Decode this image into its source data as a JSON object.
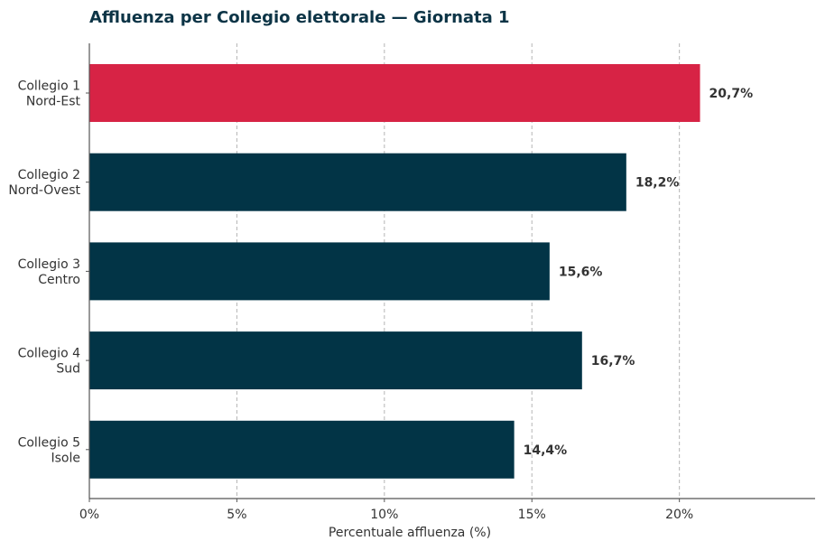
{
  "chart_data": {
    "type": "bar",
    "orientation": "horizontal",
    "title": "Affluenza per Collegio elettorale — Giornata 1",
    "xlabel": "Percentuale affluenza (%)",
    "ylabel": "",
    "categories": [
      [
        "Collegio 1",
        "Nord-Est"
      ],
      [
        "Collegio 2",
        "Nord-Ovest"
      ],
      [
        "Collegio 3",
        "Centro"
      ],
      [
        "Collegio 4",
        "Sud"
      ],
      [
        "Collegio 5",
        "Isole"
      ]
    ],
    "values": [
      20.7,
      18.2,
      15.6,
      16.7,
      14.4
    ],
    "value_labels": [
      "20,7%",
      "18,2%",
      "15,6%",
      "16,7%",
      "14,4%"
    ],
    "xlim": [
      0,
      24.6
    ],
    "xticks": [
      0,
      5,
      10,
      15,
      20
    ],
    "xtick_labels": [
      "0%",
      "5%",
      "10%",
      "15%",
      "20%"
    ],
    "grid": "vertical dashed",
    "legend": "none",
    "highlight_index": 0,
    "colors": {
      "highlight": "#d72345",
      "default": "#023446",
      "grid": "#b5b5b5",
      "axis": "#555555",
      "text": "#333333"
    }
  }
}
